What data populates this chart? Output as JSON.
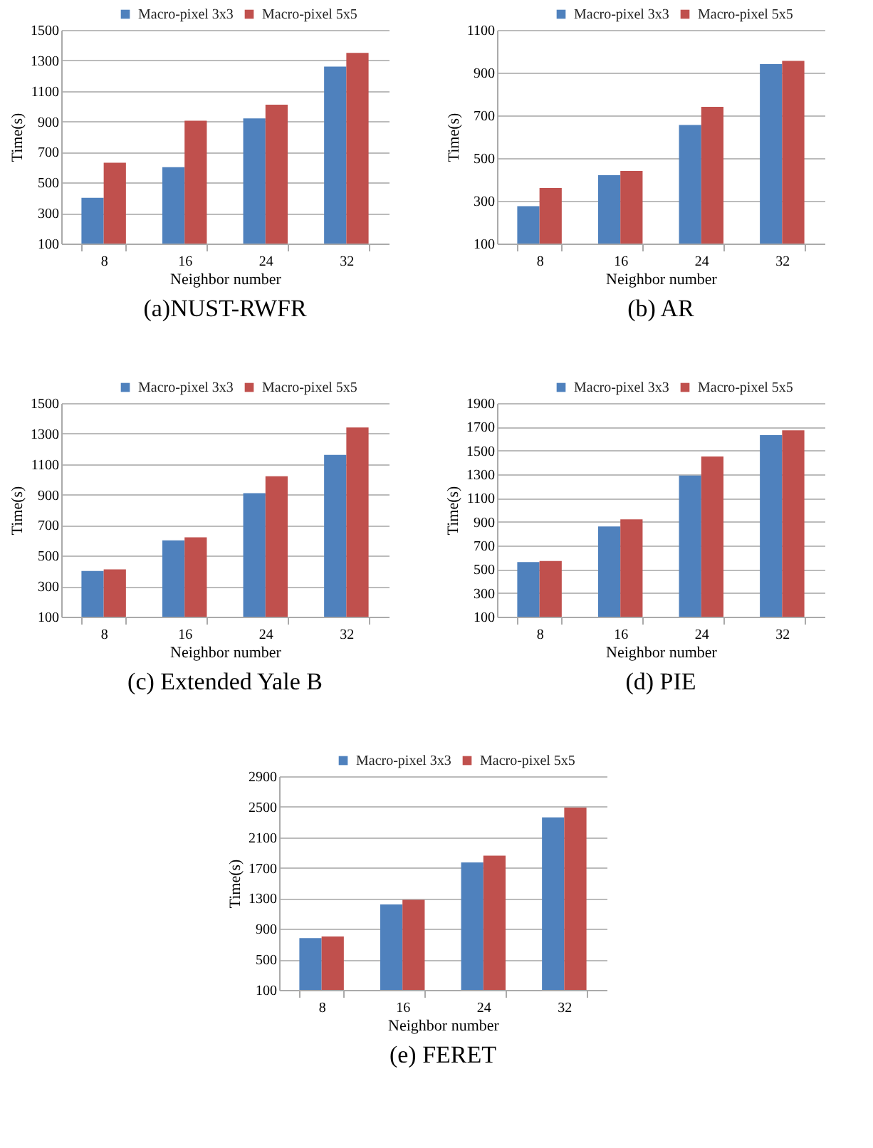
{
  "chart_data": [
    {
      "type": "bar",
      "title": "(a)NUST-RWFR",
      "xlabel": "Neighbor number",
      "ylabel": "Time(s)",
      "categories": [
        "8",
        "16",
        "24",
        "32"
      ],
      "ylim": [
        100,
        1500
      ],
      "yticks": [
        100,
        300,
        500,
        700,
        900,
        1100,
        1300,
        1500
      ],
      "grid": "y",
      "legend": "top right",
      "series": [
        {
          "name": "Macro-pixel 3x3",
          "color": "#4f81bd",
          "values": [
            400,
            600,
            920,
            1260
          ]
        },
        {
          "name": "Macro-pixel 5x5",
          "color": "#c0504d",
          "values": [
            630,
            905,
            1010,
            1350
          ]
        }
      ]
    },
    {
      "type": "bar",
      "title": "(b) AR",
      "xlabel": "Neighbor number",
      "ylabel": "Time(s)",
      "categories": [
        "8",
        "16",
        "24",
        "32"
      ],
      "ylim": [
        100,
        1100
      ],
      "yticks": [
        100,
        300,
        500,
        700,
        900,
        1100
      ],
      "grid": "y",
      "legend": "top right",
      "series": [
        {
          "name": "Macro-pixel 3x3",
          "color": "#4f81bd",
          "values": [
            275,
            420,
            655,
            940
          ]
        },
        {
          "name": "Macro-pixel 5x5",
          "color": "#c0504d",
          "values": [
            360,
            440,
            740,
            955
          ]
        }
      ]
    },
    {
      "type": "bar",
      "title": "(c) Extended Yale B",
      "xlabel": "Neighbor number",
      "ylabel": "Time(s)",
      "categories": [
        "8",
        "16",
        "24",
        "32"
      ],
      "ylim": [
        100,
        1500
      ],
      "yticks": [
        100,
        300,
        500,
        700,
        900,
        1100,
        1300,
        1500
      ],
      "grid": "y",
      "legend": "top right",
      "series": [
        {
          "name": "Macro-pixel 3x3",
          "color": "#4f81bd",
          "values": [
            400,
            600,
            910,
            1160
          ]
        },
        {
          "name": "Macro-pixel 5x5",
          "color": "#c0504d",
          "values": [
            410,
            620,
            1020,
            1340
          ]
        }
      ]
    },
    {
      "type": "bar",
      "title": "(d) PIE",
      "xlabel": "Neighbor number",
      "ylabel": "Time(s)",
      "categories": [
        "8",
        "16",
        "24",
        "32"
      ],
      "ylim": [
        100,
        1900
      ],
      "yticks": [
        100,
        300,
        500,
        700,
        900,
        1100,
        1300,
        1500,
        1700,
        1900
      ],
      "grid": "y",
      "legend": "top right",
      "series": [
        {
          "name": "Macro-pixel 3x3",
          "color": "#4f81bd",
          "values": [
            560,
            860,
            1290,
            1630
          ]
        },
        {
          "name": "Macro-pixel 5x5",
          "color": "#c0504d",
          "values": [
            570,
            920,
            1450,
            1670
          ]
        }
      ]
    },
    {
      "type": "bar",
      "title": "(e) FERET",
      "xlabel": "Neighbor number",
      "ylabel": "Time(s)",
      "categories": [
        "8",
        "16",
        "24",
        "32"
      ],
      "ylim": [
        100,
        2900
      ],
      "yticks": [
        100,
        500,
        900,
        1300,
        1700,
        2100,
        2500,
        2900
      ],
      "grid": "y",
      "legend": "top right",
      "series": [
        {
          "name": "Macro-pixel 3x3",
          "color": "#4f81bd",
          "values": [
            780,
            1220,
            1770,
            2360
          ]
        },
        {
          "name": "Macro-pixel 5x5",
          "color": "#c0504d",
          "values": [
            800,
            1280,
            1860,
            2490
          ]
        }
      ]
    }
  ]
}
